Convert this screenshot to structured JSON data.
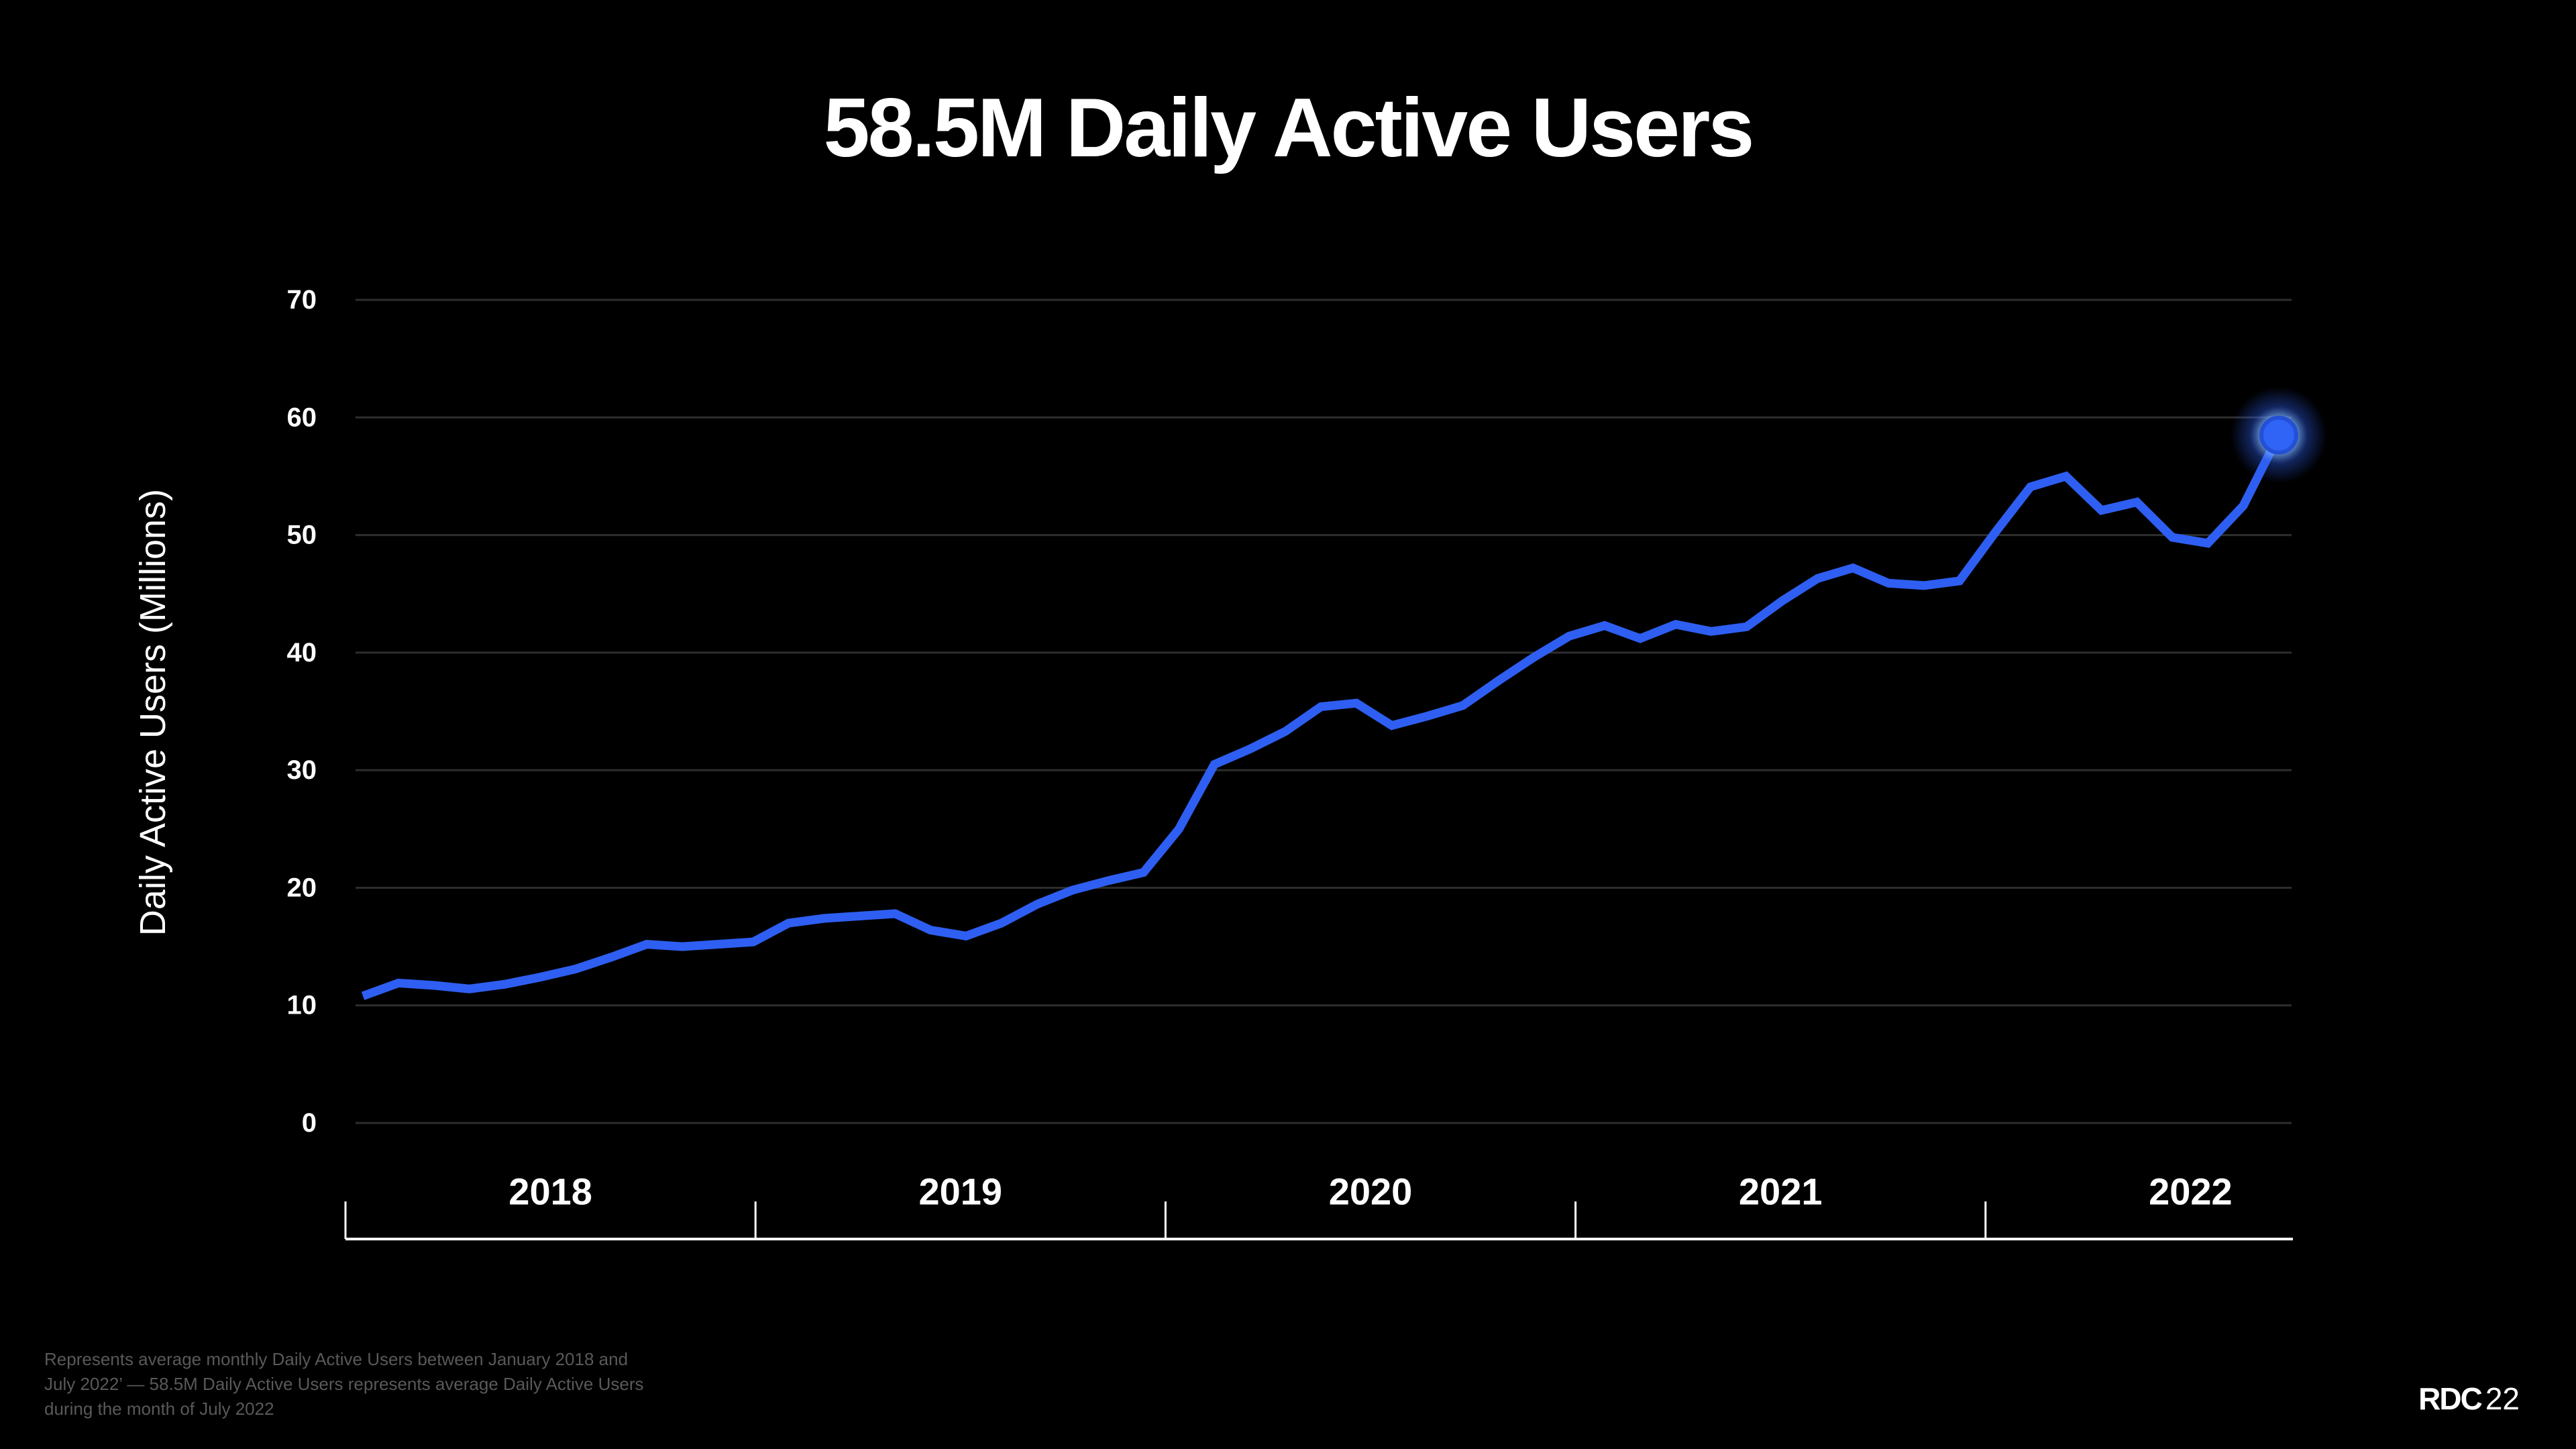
{
  "slide": {
    "title": "58.5M Daily Active Users",
    "footnote_lines": [
      "Represents average monthly Daily Active Users between January 2018 and",
      "July 2022’ — 58.5M Daily Active Users represents average Daily Active Users",
      "during the month of July 2022"
    ],
    "logo": {
      "bold": "RDC",
      "year": "22"
    }
  },
  "chart_data": {
    "type": "line",
    "title": "58.5M Daily Active Users",
    "xlabel": "",
    "ylabel": "Daily Active Users (Millions)",
    "ylim": [
      0,
      70
    ],
    "y_ticks": [
      70,
      60,
      50,
      40,
      30,
      20,
      10,
      0
    ],
    "x_year_labels": [
      "2018",
      "2019",
      "2020",
      "2021",
      "2022"
    ],
    "grid": "horizontal",
    "legend": "none",
    "x_months": [
      "2018-01",
      "2018-02",
      "2018-03",
      "2018-04",
      "2018-05",
      "2018-06",
      "2018-07",
      "2018-08",
      "2018-09",
      "2018-10",
      "2018-11",
      "2018-12",
      "2019-01",
      "2019-02",
      "2019-03",
      "2019-04",
      "2019-05",
      "2019-06",
      "2019-07",
      "2019-08",
      "2019-09",
      "2019-10",
      "2019-11",
      "2019-12",
      "2020-01",
      "2020-02",
      "2020-03",
      "2020-04",
      "2020-05",
      "2020-06",
      "2020-07",
      "2020-08",
      "2020-09",
      "2020-10",
      "2020-11",
      "2020-12",
      "2021-01",
      "2021-02",
      "2021-03",
      "2021-04",
      "2021-05",
      "2021-06",
      "2021-07",
      "2021-08",
      "2021-09",
      "2021-10",
      "2021-11",
      "2021-12",
      "2022-01",
      "2022-02",
      "2022-03",
      "2022-04",
      "2022-05",
      "2022-06",
      "2022-07"
    ],
    "series": [
      {
        "name": "Daily Active Users (Millions)",
        "values": [
          10.8,
          11.9,
          11.7,
          11.4,
          11.8,
          12.4,
          13.1,
          14.1,
          15.2,
          15.0,
          15.2,
          15.4,
          17.0,
          17.4,
          17.6,
          17.8,
          16.4,
          15.9,
          17.0,
          18.6,
          19.8,
          20.6,
          21.3,
          25.0,
          30.5,
          31.8,
          33.3,
          35.4,
          35.7,
          33.8,
          34.6,
          35.5,
          37.6,
          39.6,
          41.4,
          42.3,
          41.2,
          42.4,
          41.8,
          42.2,
          44.4,
          46.3,
          47.2,
          45.9,
          45.7,
          46.1,
          50.2,
          54.1,
          55.0,
          52.1,
          52.8,
          49.8,
          49.3,
          52.5,
          58.5
        ]
      }
    ],
    "endpoint": {
      "month": "2022-07",
      "value": 58.5,
      "label": "58.5M"
    },
    "colors": {
      "background": "#000000",
      "line": "#2e5ff2",
      "endpoint_fill": "#2f64f6",
      "endpoint_rim": "#2350d6",
      "endpoint_glow": "#7fb6ff",
      "grid": "#2e2e2e",
      "axis": "#ffffff",
      "text": "#ffffff",
      "footnote": "#595959"
    }
  }
}
